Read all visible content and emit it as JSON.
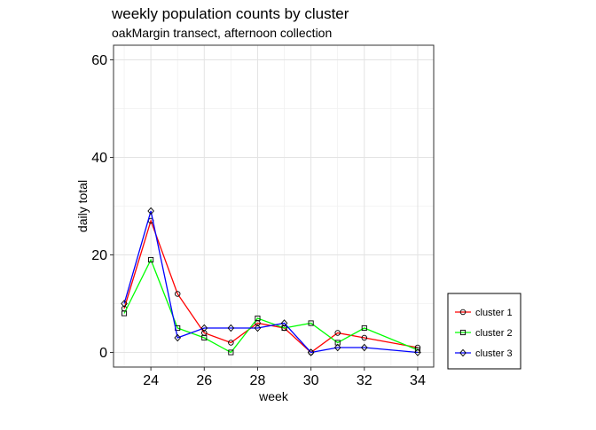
{
  "chart_data": {
    "type": "line",
    "title": "weekly population counts by cluster",
    "subtitle": "oakMargin transect, afternoon collection",
    "xlabel": "week",
    "ylabel": "daily total",
    "xlim": [
      22.6,
      34.6
    ],
    "ylim": [
      -3,
      63
    ],
    "xticks": [
      24,
      26,
      28,
      30,
      32,
      34
    ],
    "yticks": [
      0,
      20,
      40,
      60
    ],
    "grid": true,
    "legend_position": "bottom-right",
    "x": [
      23,
      24,
      25,
      26,
      27,
      28,
      29,
      30,
      31,
      32,
      34
    ],
    "series": [
      {
        "name": "cluster 1",
        "color": "#ff0000",
        "marker": "circle",
        "values": [
          9,
          27,
          12,
          4,
          2,
          6,
          5,
          0,
          4,
          3,
          1
        ]
      },
      {
        "name": "cluster 2",
        "color": "#00ff00",
        "marker": "square",
        "values": [
          8,
          19,
          5,
          3,
          0,
          7,
          5,
          6,
          2,
          5,
          0.5
        ]
      },
      {
        "name": "cluster 3",
        "color": "#0000ff",
        "marker": "diamond",
        "values": [
          10,
          29,
          3,
          5,
          5,
          5,
          6,
          0,
          1,
          1,
          0
        ]
      }
    ]
  }
}
